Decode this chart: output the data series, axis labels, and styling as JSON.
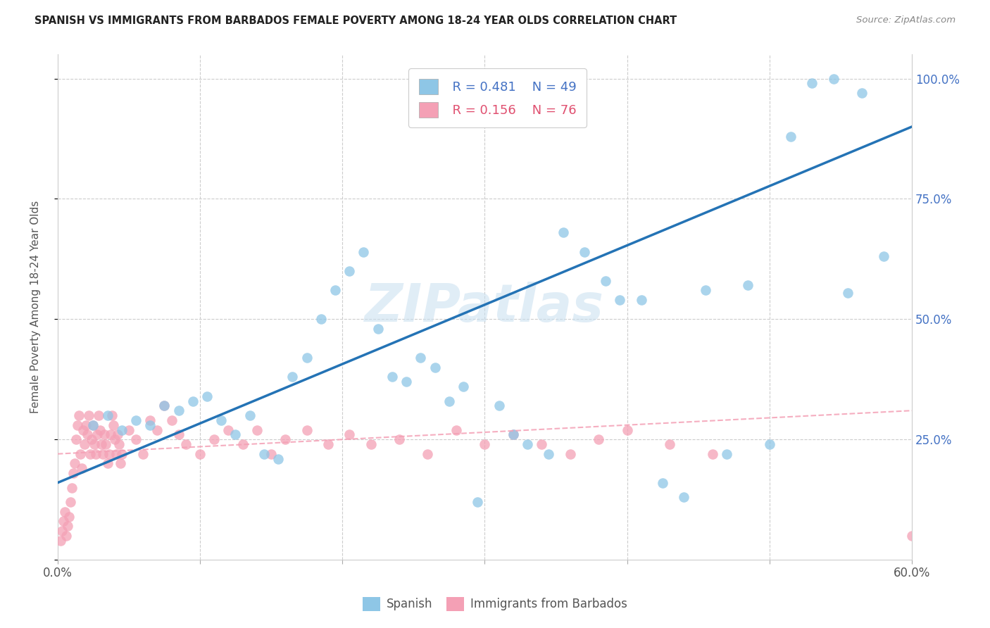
{
  "title": "SPANISH VS IMMIGRANTS FROM BARBADOS FEMALE POVERTY AMONG 18-24 YEAR OLDS CORRELATION CHART",
  "source": "Source: ZipAtlas.com",
  "ylabel": "Female Poverty Among 18-24 Year Olds",
  "xlim": [
    0.0,
    0.6
  ],
  "ylim": [
    0.0,
    1.05
  ],
  "xtick_positions": [
    0.0,
    0.1,
    0.2,
    0.3,
    0.4,
    0.5,
    0.6
  ],
  "xticklabels": [
    "0.0%",
    "",
    "",
    "",
    "",
    "",
    "60.0%"
  ],
  "ytick_positions": [
    0.0,
    0.25,
    0.5,
    0.75,
    1.0
  ],
  "yticklabels": [
    "",
    "25.0%",
    "50.0%",
    "75.0%",
    "100.0%"
  ],
  "legend_r_spanish": "R = 0.481",
  "legend_n_spanish": "N = 49",
  "legend_r_barbados": "R = 0.156",
  "legend_n_barbados": "N = 76",
  "color_spanish": "#8ec6e6",
  "color_barbados": "#f4a0b5",
  "color_line_spanish": "#2473b5",
  "color_line_barbados": "#f4a0b5",
  "watermark": "ZIPatlas",
  "spanish_x": [
    0.025,
    0.035,
    0.045,
    0.055,
    0.065,
    0.075,
    0.085,
    0.095,
    0.105,
    0.115,
    0.125,
    0.135,
    0.145,
    0.155,
    0.165,
    0.175,
    0.185,
    0.195,
    0.205,
    0.215,
    0.225,
    0.235,
    0.245,
    0.255,
    0.265,
    0.275,
    0.285,
    0.295,
    0.31,
    0.32,
    0.33,
    0.345,
    0.355,
    0.37,
    0.385,
    0.395,
    0.41,
    0.425,
    0.44,
    0.455,
    0.47,
    0.485,
    0.5,
    0.515,
    0.53,
    0.545,
    0.555,
    0.565,
    0.58
  ],
  "spanish_y": [
    0.28,
    0.3,
    0.27,
    0.29,
    0.28,
    0.32,
    0.31,
    0.33,
    0.34,
    0.29,
    0.26,
    0.3,
    0.22,
    0.21,
    0.38,
    0.42,
    0.5,
    0.56,
    0.6,
    0.64,
    0.48,
    0.38,
    0.37,
    0.42,
    0.4,
    0.33,
    0.36,
    0.12,
    0.32,
    0.26,
    0.24,
    0.22,
    0.68,
    0.64,
    0.58,
    0.54,
    0.54,
    0.16,
    0.13,
    0.56,
    0.22,
    0.57,
    0.24,
    0.88,
    0.99,
    1.0,
    0.555,
    0.97,
    0.63
  ],
  "barbados_x": [
    0.002,
    0.003,
    0.004,
    0.005,
    0.006,
    0.007,
    0.008,
    0.009,
    0.01,
    0.011,
    0.012,
    0.013,
    0.014,
    0.015,
    0.016,
    0.017,
    0.018,
    0.019,
    0.02,
    0.021,
    0.022,
    0.023,
    0.024,
    0.025,
    0.026,
    0.027,
    0.028,
    0.029,
    0.03,
    0.031,
    0.032,
    0.033,
    0.034,
    0.035,
    0.036,
    0.037,
    0.038,
    0.039,
    0.04,
    0.041,
    0.042,
    0.043,
    0.044,
    0.045,
    0.05,
    0.055,
    0.06,
    0.065,
    0.07,
    0.075,
    0.08,
    0.085,
    0.09,
    0.1,
    0.11,
    0.12,
    0.13,
    0.14,
    0.15,
    0.16,
    0.175,
    0.19,
    0.205,
    0.22,
    0.24,
    0.26,
    0.28,
    0.3,
    0.32,
    0.34,
    0.36,
    0.38,
    0.4,
    0.43,
    0.46,
    0.6
  ],
  "barbados_y": [
    0.04,
    0.06,
    0.08,
    0.1,
    0.05,
    0.07,
    0.09,
    0.12,
    0.15,
    0.18,
    0.2,
    0.25,
    0.28,
    0.3,
    0.22,
    0.19,
    0.27,
    0.24,
    0.28,
    0.26,
    0.3,
    0.22,
    0.25,
    0.28,
    0.24,
    0.22,
    0.26,
    0.3,
    0.27,
    0.24,
    0.22,
    0.26,
    0.24,
    0.2,
    0.22,
    0.26,
    0.3,
    0.28,
    0.25,
    0.22,
    0.26,
    0.24,
    0.2,
    0.22,
    0.27,
    0.25,
    0.22,
    0.29,
    0.27,
    0.32,
    0.29,
    0.26,
    0.24,
    0.22,
    0.25,
    0.27,
    0.24,
    0.27,
    0.22,
    0.25,
    0.27,
    0.24,
    0.26,
    0.24,
    0.25,
    0.22,
    0.27,
    0.24,
    0.26,
    0.24,
    0.22,
    0.25,
    0.27,
    0.24,
    0.22,
    0.05
  ],
  "line_spanish_x0": 0.0,
  "line_spanish_y0": 0.16,
  "line_spanish_x1": 0.6,
  "line_spanish_y1": 0.9,
  "line_barbados_x0": 0.0,
  "line_barbados_y0": 0.22,
  "line_barbados_x1": 0.6,
  "line_barbados_y1": 0.31
}
